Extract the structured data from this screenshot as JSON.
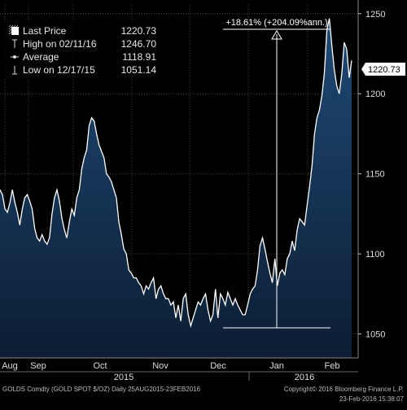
{
  "chart_data": {
    "type": "area",
    "ylim": [
      1035,
      1256
    ],
    "y_ticks": [
      1050,
      1100,
      1150,
      1200,
      1250
    ],
    "month_labels": [
      "Aug",
      "Sep",
      "Oct",
      "Nov",
      "Dec",
      "Jan",
      "Feb"
    ],
    "year_labels": [
      "2015",
      "2016"
    ],
    "grid": true,
    "series": [
      {
        "values": [
          1140,
          1137,
          1128,
          1126,
          1132,
          1140,
          1132,
          1126,
          1118,
          1128,
          1135,
          1137,
          1133,
          1128,
          1116,
          1110,
          1108,
          1112,
          1108,
          1106,
          1110,
          1125,
          1135,
          1140,
          1133,
          1122,
          1115,
          1110,
          1120,
          1128,
          1124,
          1135,
          1140,
          1153,
          1160,
          1165,
          1180,
          1185,
          1183,
          1175,
          1168,
          1164,
          1160,
          1150,
          1148,
          1145,
          1140,
          1135,
          1120,
          1112,
          1103,
          1100,
          1090,
          1088,
          1085,
          1085,
          1082,
          1080,
          1075,
          1080,
          1078,
          1082,
          1085,
          1072,
          1078,
          1080,
          1075,
          1072,
          1072,
          1068,
          1070,
          1060,
          1068,
          1058,
          1072,
          1075,
          1062,
          1055,
          1060,
          1065,
          1070,
          1068,
          1072,
          1075,
          1065,
          1058,
          1062,
          1078,
          1060,
          1075,
          1072,
          1068,
          1076,
          1072,
          1068,
          1072,
          1068,
          1065,
          1062,
          1062,
          1068,
          1075,
          1078,
          1080,
          1090,
          1105,
          1110,
          1103,
          1095,
          1088,
          1082,
          1097,
          1080,
          1088,
          1090,
          1087,
          1097,
          1100,
          1108,
          1102,
          1115,
          1122,
          1120,
          1118,
          1130,
          1142,
          1155,
          1175,
          1185,
          1190,
          1199,
          1213,
          1240,
          1247,
          1230,
          1215,
          1205,
          1200,
          1212,
          1232,
          1228,
          1210,
          1220.73
        ]
      }
    ],
    "last_price": 1220.73,
    "high": {
      "date": "02/11/16",
      "value": 1246.7
    },
    "low": {
      "date": "12/17/15",
      "value": 1051.14
    },
    "average": 1118.91,
    "annotation": "+18.61% (+204.09%ann.)",
    "colors": {
      "area_top": "#1f4a76",
      "area_bottom": "#0c1d33",
      "line": "#ffffff",
      "grid": "#444444",
      "axis_text": "#dddddd",
      "background": "#000000"
    }
  },
  "legend": {
    "last_price_label": "Last Price",
    "last_price_value": "1220.73",
    "high_label": "High on 02/11/16",
    "high_value": "1246.70",
    "average_label": "Average",
    "average_value": "1118.91",
    "low_label": "Low on 12/17/15",
    "low_value": "1051.14"
  },
  "footer": {
    "left_text": "GOLDS Comdty (GOLD SPOT $/OZ)  Daily 25AUG2015-23FEB2016",
    "right_text_1": "Copyright© 2016 Bloomberg Finance L.P.",
    "right_text_2": "23-Feb-2016 15:38:07"
  }
}
